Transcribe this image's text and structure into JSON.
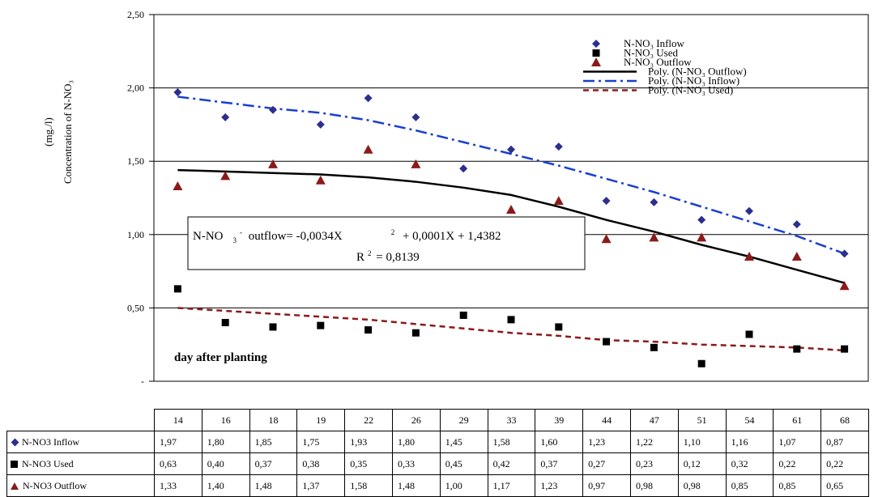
{
  "chart_data": {
    "type": "scatter",
    "ylabel_lines": [
      "Concentration of N-NO₃",
      "(mg./l)"
    ],
    "annotation_day": "day after planting",
    "categories": [
      "14",
      "16",
      "18",
      "19",
      "22",
      "26",
      "29",
      "33",
      "39",
      "44",
      "47",
      "51",
      "54",
      "61",
      "68"
    ],
    "y_ticks": [
      "2,50",
      "2,00",
      "1,50",
      "1,00",
      "0,50",
      "-"
    ],
    "ylim": [
      0,
      2.5
    ],
    "series": [
      {
        "name": "N-NO3 Inflow",
        "legend": "N-NO₃ Inflow",
        "marker": "diamond",
        "color": "#2c2f8e",
        "values": [
          1.97,
          1.8,
          1.85,
          1.75,
          1.93,
          1.8,
          1.45,
          1.58,
          1.6,
          1.23,
          1.22,
          1.1,
          1.16,
          1.07,
          0.87
        ],
        "labels": [
          "1,97",
          "1,80",
          "1,85",
          "1,75",
          "1,93",
          "1,80",
          "1,45",
          "1,58",
          "1,60",
          "1,23",
          "1,22",
          "1,10",
          "1,16",
          "1,07",
          "0,87"
        ]
      },
      {
        "name": "N-NO3 Used",
        "legend": "N-NO₃ Used",
        "marker": "square",
        "color": "#000000",
        "values": [
          0.63,
          0.4,
          0.37,
          0.38,
          0.35,
          0.33,
          0.45,
          0.42,
          0.37,
          0.27,
          0.23,
          0.12,
          0.32,
          0.22,
          0.22
        ],
        "labels": [
          "0,63",
          "0,40",
          "0,37",
          "0,38",
          "0,35",
          "0,33",
          "0,45",
          "0,42",
          "0,37",
          "0,27",
          "0,23",
          "0,12",
          "0,32",
          "0,22",
          "0,22"
        ]
      },
      {
        "name": "N-NO3 Outflow",
        "legend": "N-NO₃ Outflow",
        "marker": "triangle",
        "color": "#8b1a1a",
        "values": [
          1.33,
          1.4,
          1.48,
          1.37,
          1.58,
          1.48,
          1.0,
          1.17,
          1.23,
          0.97,
          0.98,
          0.98,
          0.85,
          0.85,
          0.65
        ],
        "labels": [
          "1,33",
          "1,40",
          "1,48",
          "1,37",
          "1,58",
          "1,48",
          "1,00",
          "1,17",
          "1,23",
          "0,97",
          "0,98",
          "0,98",
          "0,85",
          "0,85",
          "0,65"
        ]
      }
    ],
    "trendlines": [
      {
        "legend": "Poly. (N-NO₃ Outflow)",
        "style": "solid",
        "color": "#000000",
        "values": [
          1.44,
          1.43,
          1.42,
          1.41,
          1.39,
          1.36,
          1.32,
          1.27,
          1.19,
          1.1,
          1.02,
          0.93,
          0.85,
          0.76,
          0.67
        ]
      },
      {
        "legend": "Poly. (N-NO₃ Inflow)",
        "style": "dashdot",
        "color": "#1a3fd0",
        "values": [
          1.94,
          1.9,
          1.86,
          1.83,
          1.78,
          1.71,
          1.63,
          1.55,
          1.47,
          1.38,
          1.29,
          1.19,
          1.09,
          0.99,
          0.87
        ]
      },
      {
        "legend": "Poly. (N-NO₃ Used)",
        "style": "dashed",
        "color": "#8b1a1a",
        "values": [
          0.5,
          0.48,
          0.46,
          0.44,
          0.42,
          0.39,
          0.36,
          0.33,
          0.31,
          0.28,
          0.27,
          0.25,
          0.24,
          0.23,
          0.21
        ]
      }
    ],
    "equation": {
      "line1_prefix": "N-NO",
      "line1_sub": "3",
      "line1_sup": "-",
      "line1_mid": " outflow= -0,0034X",
      "line1_sup2": "2",
      "line1_rest": " + 0,0001X + 1,4382",
      "line2": "R",
      "line2_sup": "2",
      "line2_rest": " = 0,8139"
    },
    "grid": true,
    "legend_position": "top-right"
  },
  "table": {
    "rows": [
      {
        "label": "N-NO3 Inflow",
        "marker": "diamond"
      },
      {
        "label": "N-NO3 Used",
        "marker": "square"
      },
      {
        "label": "N-NO3 Outflow",
        "marker": "triangle"
      }
    ]
  }
}
